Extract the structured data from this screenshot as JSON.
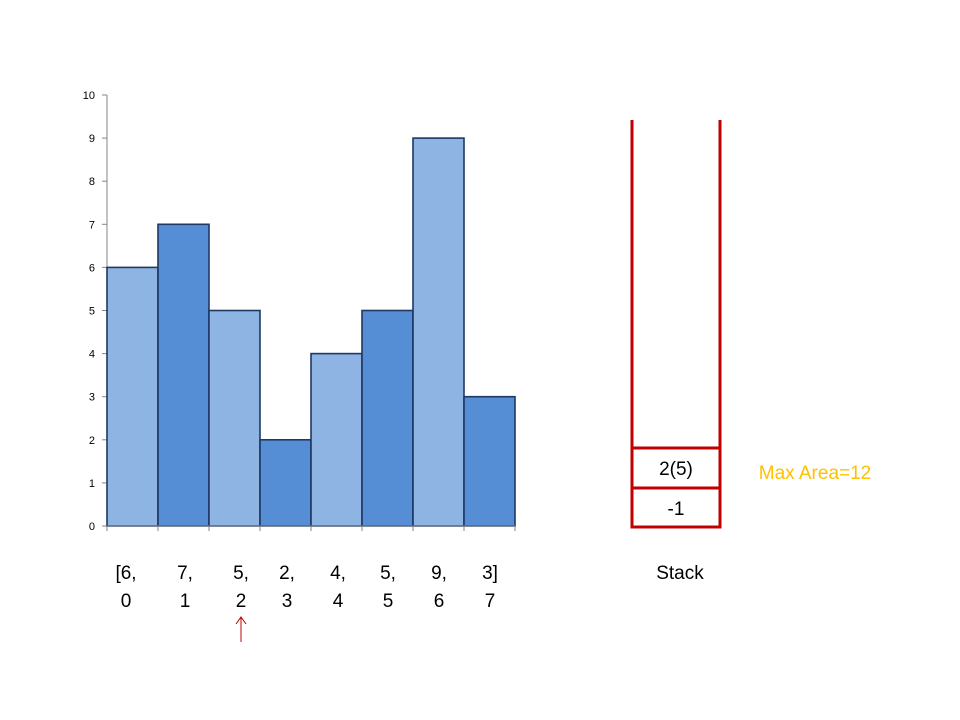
{
  "chart_data": {
    "type": "bar",
    "categories": [
      "0",
      "1",
      "2",
      "3",
      "4",
      "5",
      "6",
      "7"
    ],
    "values": [
      6,
      7,
      5,
      2,
      4,
      5,
      9,
      3
    ],
    "ylim": [
      0,
      10
    ],
    "yticks": [
      0,
      1,
      2,
      3,
      4,
      5,
      6,
      7,
      8,
      9,
      10
    ],
    "grid": false,
    "bar_colors": [
      "#8EB4E3",
      "#558ED5",
      "#8EB4E3",
      "#558ED5",
      "#8EB4E3",
      "#558ED5",
      "#8EB4E3",
      "#558ED5"
    ],
    "edge_color": "#1F3864"
  },
  "array_labels": {
    "values": [
      "[6,",
      "7,",
      "5,",
      "2,",
      "4,",
      "5,",
      "9,",
      "3]"
    ],
    "indices": [
      "0",
      "1",
      "2",
      "3",
      "4",
      "5",
      "6",
      "7"
    ],
    "pointer_index": 2
  },
  "stack": {
    "label": "Stack",
    "cells": [
      "2(5)",
      "-1"
    ],
    "color": "#C00000"
  },
  "max_area": {
    "text": "Max Area=12",
    "color": "#FFC000"
  },
  "pointer_color": "#C00000"
}
